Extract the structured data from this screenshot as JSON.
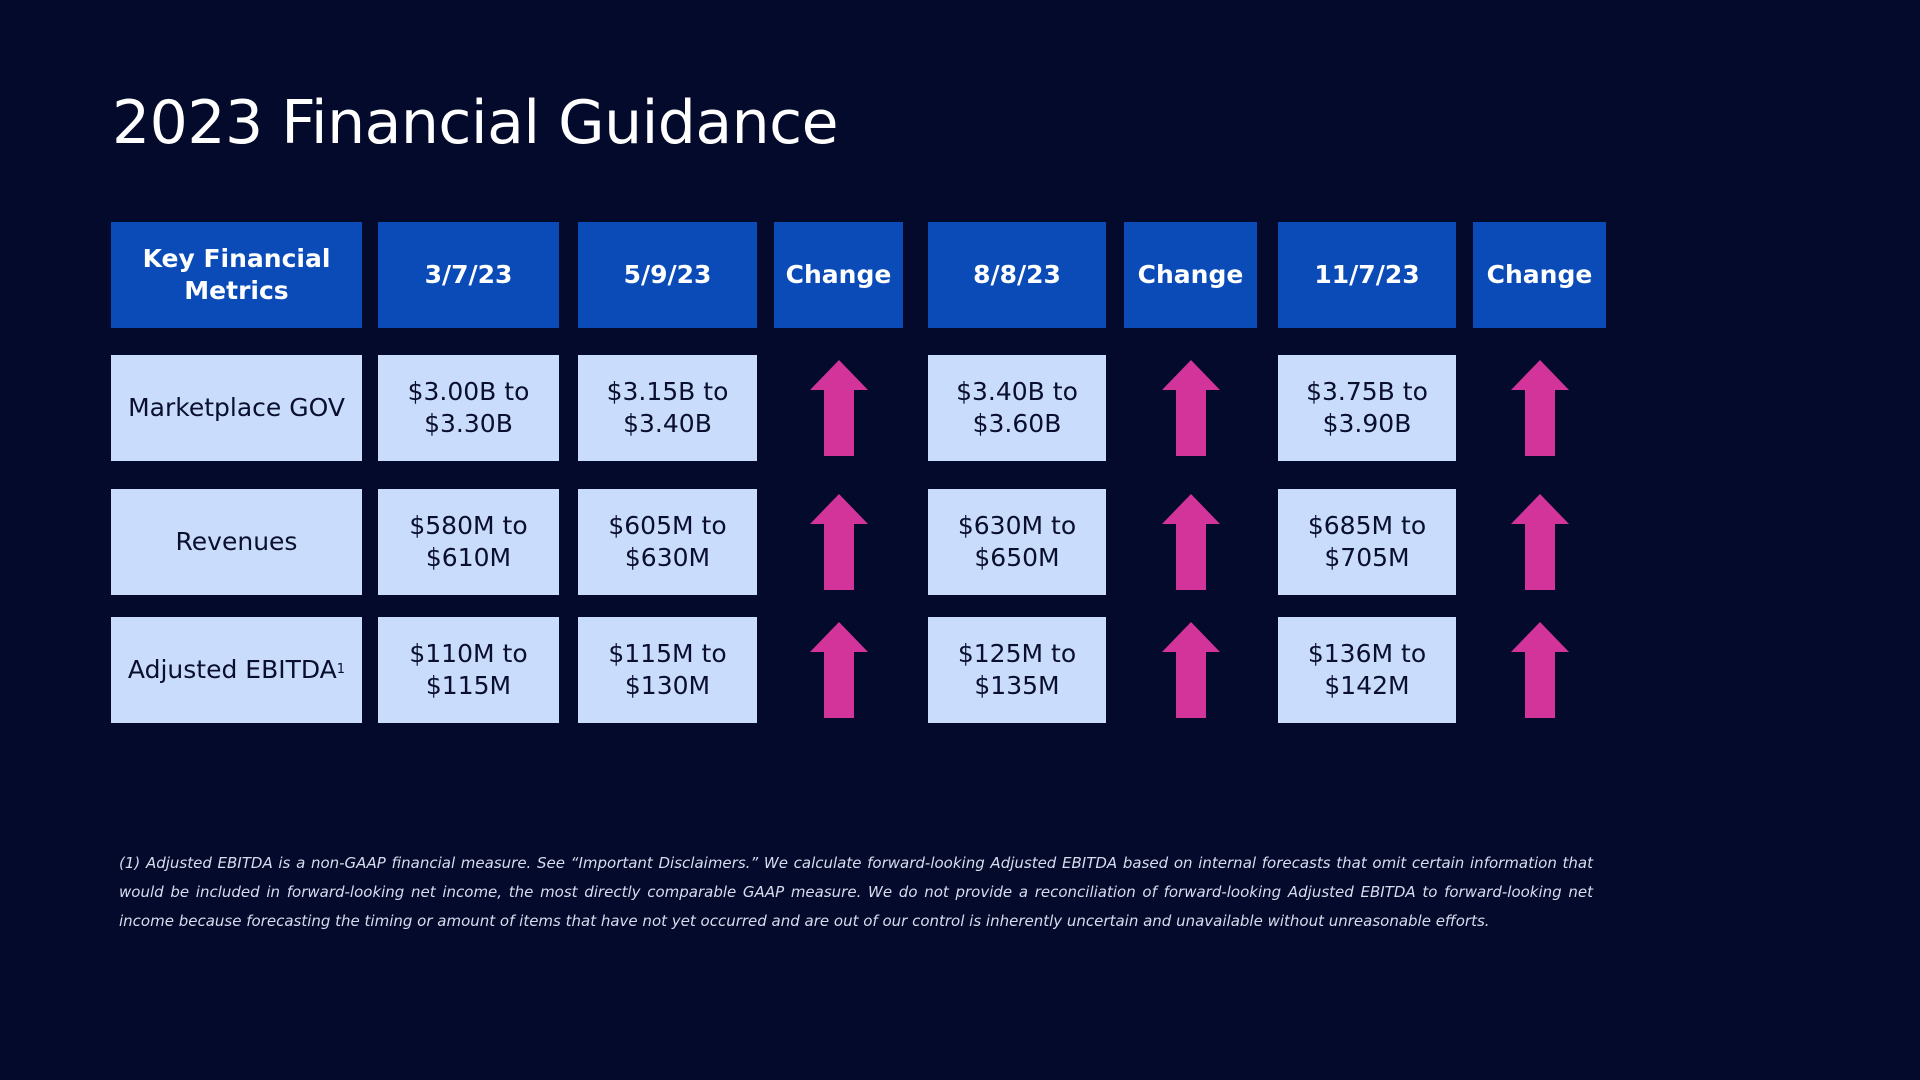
{
  "title": "2023 Financial Guidance",
  "table": {
    "header": [
      "Key Financial Metrics",
      "3/7/23",
      "5/9/23",
      "Change",
      "8/8/23",
      "Change",
      "11/7/23",
      "Change"
    ],
    "rows": [
      {
        "label": "Marketplace GOV",
        "values": [
          "$3.00B to $3.30B",
          "$3.15B to $3.40B",
          "$3.40B to $3.60B",
          "$3.75B to $3.90B"
        ]
      },
      {
        "label": "Revenues",
        "values": [
          "$580M to $610M",
          "$605M to $630M",
          "$630M to $650M",
          "$685M to $705M"
        ]
      },
      {
        "label": "Adjusted EBITDA",
        "label_note": "1",
        "values": [
          "$110M to $115M",
          "$115M to $130M",
          "$125M to $135M",
          "$136M to $142M"
        ]
      }
    ]
  },
  "footnote": "(1) Adjusted EBITDA is a non-GAAP financial measure. See “Important Disclaimers.” We calculate forward-looking Adjusted EBITDA based on internal forecasts that omit certain information that would be included in forward-looking net income, the most directly comparable GAAP measure. We do not provide a reconciliation of forward-looking Adjusted EBITDA to forward-looking net income because forecasting the timing or amount of items that have not yet occurred and are out of our control is inherently uncertain and unavailable without unreasonable efforts."
}
